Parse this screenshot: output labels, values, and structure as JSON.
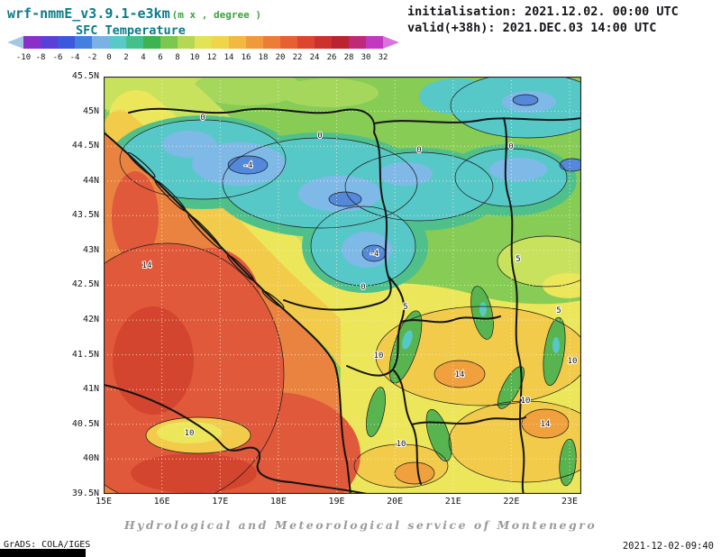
{
  "header": {
    "model_title": "wrf-nmmE_v3.9.1-e3km",
    "units_note": "(m x , degree )",
    "field_title": "SFC Temperature",
    "init_line": "initialisation: 2021.12.02. 00:00 UTC",
    "valid_line": "valid(+38h): 2021.DEC.03 14:00 UTC"
  },
  "colorbar": {
    "tick_labels": [
      "-10",
      "-8",
      "-6",
      "-4",
      "-2",
      "0",
      "2",
      "4",
      "6",
      "8",
      "10",
      "12",
      "14",
      "16",
      "18",
      "20",
      "22",
      "24",
      "26",
      "28",
      "30",
      "32"
    ],
    "segment_colors": [
      "#a4c8e0",
      "#8a30c8",
      "#5a40d8",
      "#3c58dc",
      "#4180dc",
      "#7ab2e8",
      "#58c8c8",
      "#44c08a",
      "#3cb450",
      "#7cc84c",
      "#b4d852",
      "#e2e455",
      "#f0d44a",
      "#f2b83f",
      "#f09a3a",
      "#ec7d36",
      "#e66032",
      "#dc452e",
      "#cc312b",
      "#ba2430",
      "#c02878",
      "#c238c2",
      "#da74da"
    ]
  },
  "map": {
    "x_tick_labels": [
      "15E",
      "16E",
      "17E",
      "18E",
      "19E",
      "20E",
      "21E",
      "22E",
      "23E"
    ],
    "y_tick_labels": [
      "45.5N",
      "45N",
      "44.5N",
      "44N",
      "43.5N",
      "43N",
      "42.5N",
      "42N",
      "41.5N",
      "41N",
      "40.5N",
      "40N",
      "39.5N"
    ],
    "contour_labels": {
      "c0": "0",
      "c_m4": "-4",
      "c5": "5",
      "c10": "10",
      "c14": "14"
    }
  },
  "footer": {
    "service_credit": "Hydrological and Meteorological service of Montenegro",
    "grads_credit": "GrADS: COLA/IGES",
    "generated": "2021-12-02-09:40"
  }
}
